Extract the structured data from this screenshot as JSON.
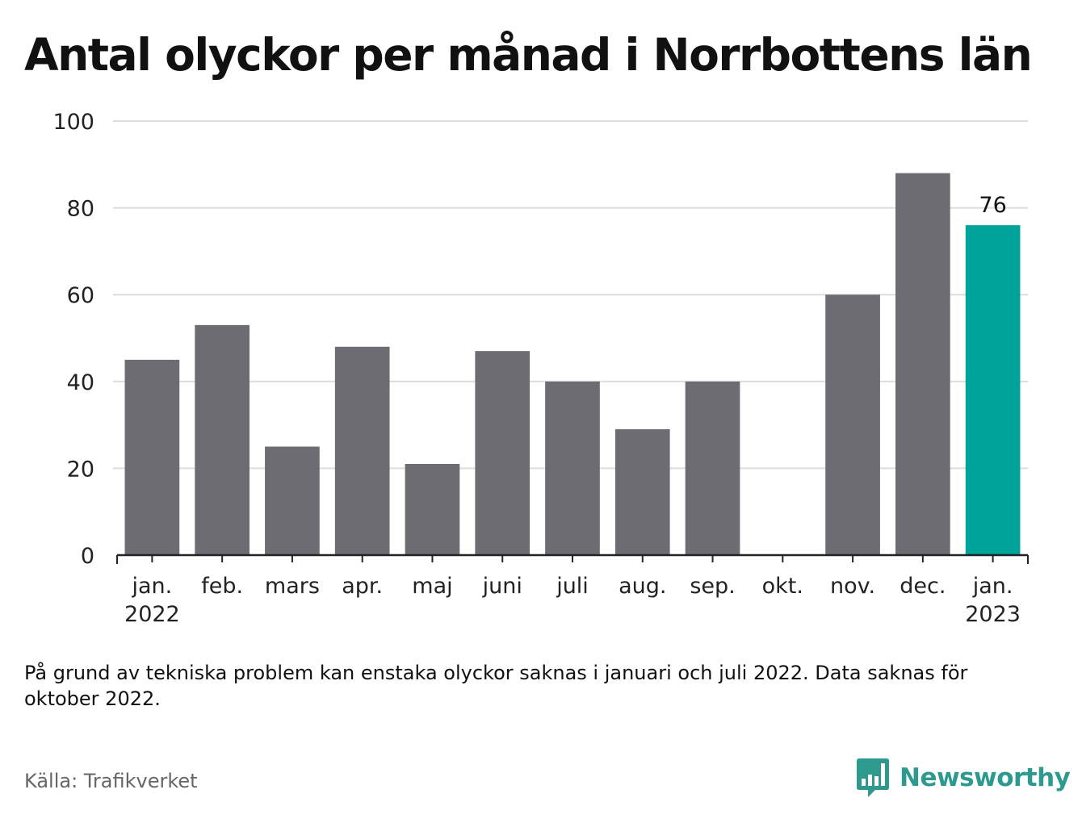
{
  "chart_data": {
    "type": "bar",
    "title": "Antal olyckor per månad i Norrbottens län",
    "categories": [
      "jan.",
      "feb.",
      "mars",
      "apr.",
      "maj",
      "juni",
      "juli",
      "aug.",
      "sep.",
      "okt.",
      "nov.",
      "dec.",
      "jan."
    ],
    "category_years": [
      "2022",
      "",
      "",
      "",
      "",
      "",
      "",
      "",
      "",
      "",
      "",
      "",
      "2023"
    ],
    "values": [
      45,
      53,
      25,
      48,
      21,
      47,
      40,
      29,
      40,
      null,
      60,
      88,
      76
    ],
    "data_labels": [
      "",
      "",
      "",
      "",
      "",
      "",
      "",
      "",
      "",
      "",
      "",
      "",
      "76"
    ],
    "highlight_index": 12,
    "xlabel": "",
    "ylabel": "",
    "ylim": [
      0,
      100
    ],
    "yticks": [
      0,
      20,
      40,
      60,
      80,
      100
    ],
    "grid": true,
    "colors": {
      "bar": "#6d6c73",
      "highlight": "#00a39a",
      "grid": "#dcdcdc",
      "axis": "#222222"
    }
  },
  "note": "På grund av tekniska problem kan enstaka olyckor saknas i januari och juli 2022. Data saknas för oktober 2022.",
  "source": "Källa: Trafikverket",
  "brand": {
    "name": "Newsworthy",
    "icon": "newsworthy-logo-icon",
    "color": "#2e9a8f"
  }
}
